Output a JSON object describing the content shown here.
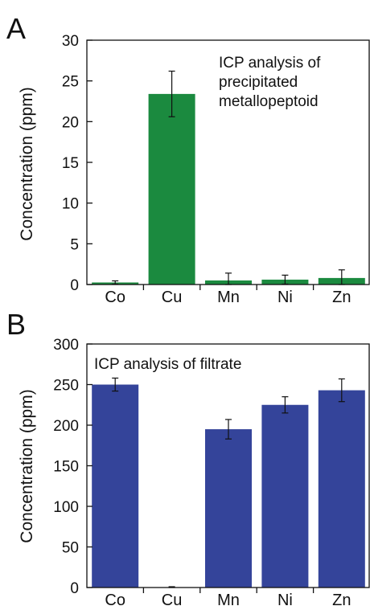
{
  "chart_data": [
    {
      "type": "bar",
      "panel_label": "A",
      "categories": [
        "Co",
        "Cu",
        "Mn",
        "Ni",
        "Zn"
      ],
      "values": [
        0.25,
        23.4,
        0.5,
        0.6,
        0.8
      ],
      "error": [
        0.2,
        2.8,
        0.9,
        0.55,
        1.0
      ],
      "ylabel": "Concentration (ppm)",
      "xlabel": "",
      "ylim": [
        0,
        30
      ],
      "yticks": [
        0,
        5,
        10,
        15,
        20,
        25,
        30
      ],
      "bar_color": "#1b8a3f",
      "annotation": [
        "ICP analysis of",
        "precipitated",
        "metallopeptoid"
      ]
    },
    {
      "type": "bar",
      "panel_label": "B",
      "categories": [
        "Co",
        "Cu",
        "Mn",
        "Ni",
        "Zn"
      ],
      "values": [
        250,
        0.5,
        195,
        225,
        243
      ],
      "error": [
        8,
        0.5,
        12,
        10,
        14
      ],
      "ylabel": "Concentration (ppm)",
      "xlabel": "",
      "ylim": [
        0,
        300
      ],
      "yticks": [
        0,
        50,
        100,
        150,
        200,
        250,
        300
      ],
      "bar_color": "#34449a",
      "annotation": [
        "ICP analysis of filtrate"
      ]
    }
  ]
}
